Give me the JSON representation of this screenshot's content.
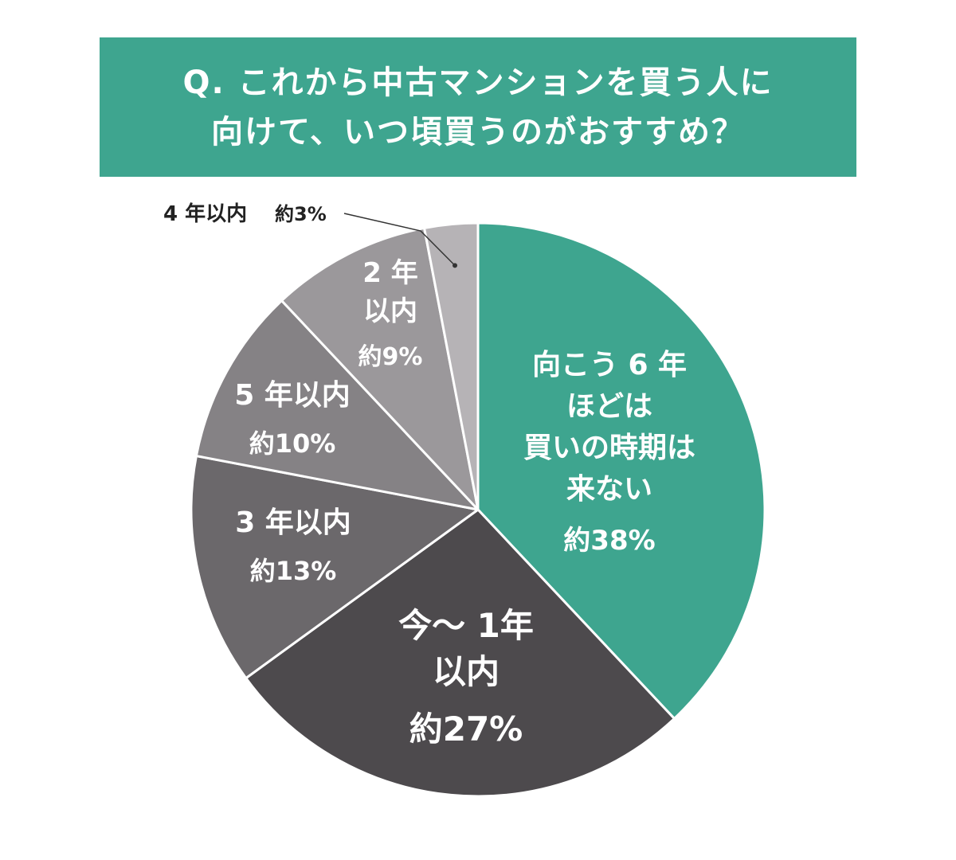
{
  "header": {
    "title_line1": "Q. これから中古マンションを買う人に",
    "title_line2": "向けて、いつ頃買うのがおすすめ？"
  },
  "colors": {
    "accent": "#3ea58f",
    "slice_1yr": "#4d4a4d",
    "slice_3yr": "#6b686b",
    "slice_5yr": "#858285",
    "slice_2yr": "#9b989b",
    "slice_4yr": "#b6b3b6"
  },
  "chart_data": {
    "type": "pie",
    "title": "Q. これから中古マンションを買う人に向けて、いつ頃買うのがおすすめ？",
    "slices": [
      {
        "label_lines": [
          "向こう 6 年",
          "ほどは",
          "買いの時期は",
          "来ない"
        ],
        "value_text": "約38%",
        "value": 38,
        "color": "#3ea58f"
      },
      {
        "label_lines": [
          "今〜 1年",
          "以内"
        ],
        "value_text": "約27%",
        "value": 27,
        "color": "#4d4a4d"
      },
      {
        "label_lines": [
          "3 年以内"
        ],
        "value_text": "約13%",
        "value": 13,
        "color": "#6b686b"
      },
      {
        "label_lines": [
          "5 年以内"
        ],
        "value_text": "約10%",
        "value": 10,
        "color": "#858285"
      },
      {
        "label_lines": [
          "2 年",
          "以内"
        ],
        "value_text": "約9%",
        "value": 9,
        "color": "#9b989b"
      },
      {
        "label_lines": [
          "4 年以内"
        ],
        "value_text": "約3%",
        "value": 3,
        "color": "#b6b3b6",
        "outside": true
      }
    ]
  }
}
